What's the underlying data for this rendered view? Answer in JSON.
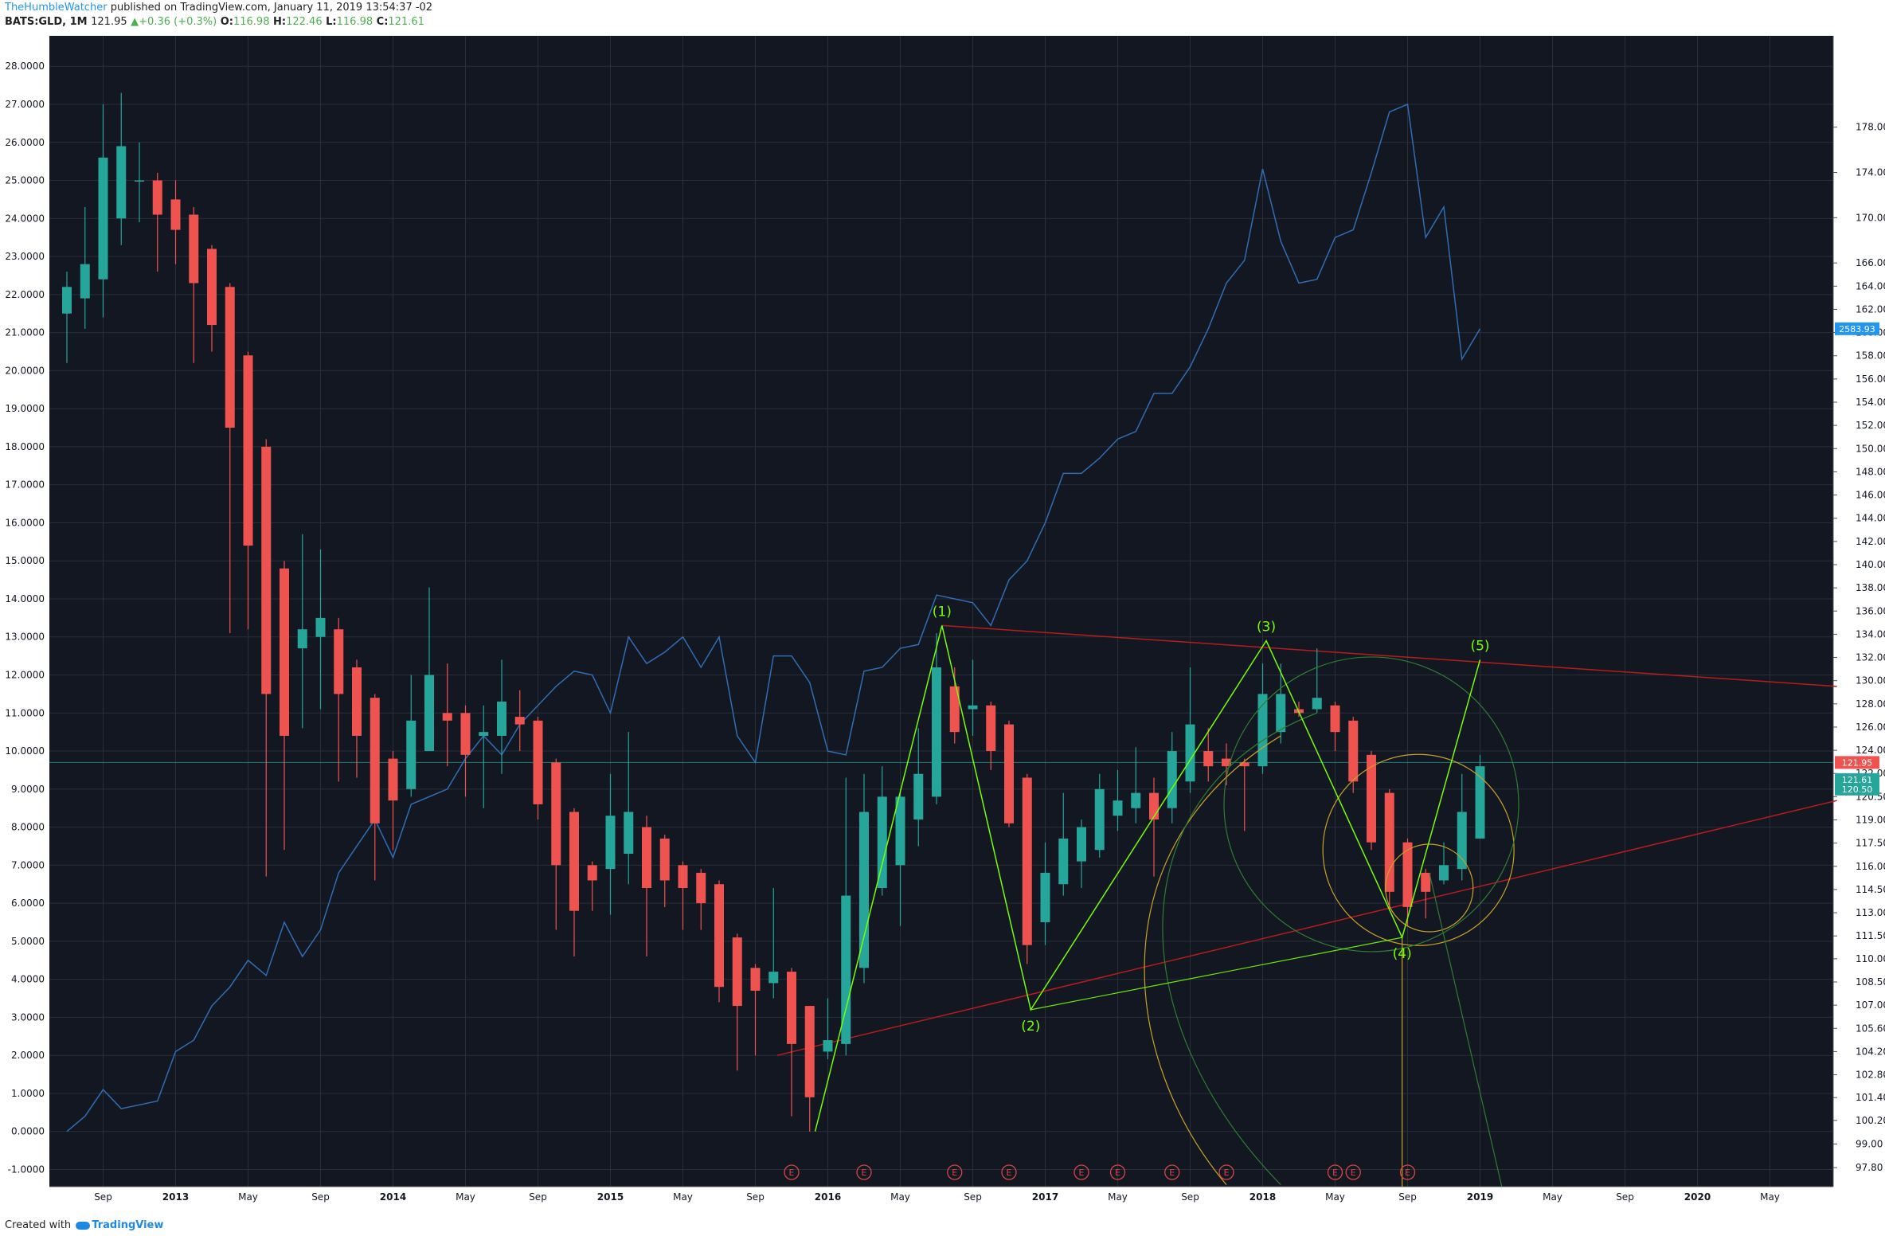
{
  "header": {
    "user": "TheHumbleWatcher",
    "published": "published on TradingView.com, January 11, 2019 13:54:37 -02",
    "symbol": "BATS:GLD, 1M",
    "last": "121.95",
    "change": "+0.36 (+0.3%)",
    "o_label": "O:",
    "o": "116.98",
    "h_label": "H:",
    "h": "122.46",
    "l_label": "L:",
    "l": "116.98",
    "c_label": "C:",
    "c": "121.61"
  },
  "footer": {
    "created": "Created with",
    "brand": "TradingView"
  },
  "colors": {
    "bg": "#131722",
    "up": "#26a69a",
    "down": "#ef5350",
    "grid": "#2a2e39",
    "axis_text": "#b2b5be",
    "wave": "#76ff03",
    "trend": "#b71c1c",
    "comparison": "#2962ff"
  },
  "chart_data": {
    "type": "candlestick",
    "timeframe": "1M",
    "left_axis": {
      "range": [
        -1.45,
        28.8
      ],
      "ticks": [
        "-1.0000",
        "0.0000",
        "1.0000",
        "2.0000",
        "3.0000",
        "4.0000",
        "5.0000",
        "6.0000",
        "7.0000",
        "8.0000",
        "9.0000",
        "10.0000",
        "11.0000",
        "12.0000",
        "13.0000",
        "14.0000",
        "15.0000",
        "16.0000",
        "17.0000",
        "18.0000",
        "19.0000",
        "20.0000",
        "21.0000",
        "22.0000",
        "23.0000",
        "24.0000",
        "25.0000",
        "26.0000",
        "27.0000",
        "28.0000"
      ]
    },
    "right_axis": {
      "ticks": [
        "97.80",
        "99.00",
        "100.20",
        "101.40",
        "102.80",
        "104.20",
        "105.60",
        "107.00",
        "108.50",
        "110.00",
        "111.50",
        "113.00",
        "114.50",
        "116.00",
        "117.50",
        "119.00",
        "120.50",
        "122.00",
        "124.00",
        "126.00",
        "128.00",
        "130.00",
        "132.00",
        "134.00",
        "136.00",
        "138.00",
        "140.00",
        "142.00",
        "144.00",
        "146.00",
        "148.00",
        "150.00",
        "152.00",
        "154.00",
        "156.00",
        "158.00",
        "160.00",
        "162.00",
        "164.00",
        "166.00",
        "170.00",
        "174.00",
        "178.00"
      ],
      "tick_values": [
        -0.95,
        -0.33,
        0.29,
        0.89,
        1.49,
        2.1,
        2.71,
        3.32,
        3.93,
        4.54,
        5.14,
        5.75,
        6.36,
        6.97,
        7.58,
        8.19,
        8.8,
        9.41,
        10.02,
        10.63,
        11.24,
        11.85,
        12.46,
        13.07,
        13.68,
        14.29,
        14.9,
        15.51,
        16.12,
        16.73,
        17.34,
        17.95,
        18.56,
        19.17,
        19.78,
        20.39,
        21.0,
        21.61,
        22.22,
        22.83,
        24.02,
        25.21,
        26.4
      ],
      "labels": [
        {
          "text": "2583.93",
          "value": 21.1,
          "color": "#2196f3"
        },
        {
          "text": "121.95",
          "value": 9.7,
          "color": "#ef5350"
        },
        {
          "text": "121.61",
          "value": 9.25,
          "color": "#26a69a"
        },
        {
          "text": "120.50",
          "value": 9.0,
          "color": "#26a69a"
        }
      ]
    },
    "x_axis": {
      "ticks": [
        {
          "label": "Sep",
          "i": 2
        },
        {
          "label": "2013",
          "i": 6
        },
        {
          "label": "May",
          "i": 10
        },
        {
          "label": "Sep",
          "i": 14
        },
        {
          "label": "2014",
          "i": 18
        },
        {
          "label": "May",
          "i": 22
        },
        {
          "label": "Sep",
          "i": 26
        },
        {
          "label": "2015",
          "i": 30
        },
        {
          "label": "May",
          "i": 34
        },
        {
          "label": "Sep",
          "i": 38
        },
        {
          "label": "2016",
          "i": 42
        },
        {
          "label": "May",
          "i": 46
        },
        {
          "label": "Sep",
          "i": 50
        },
        {
          "label": "2017",
          "i": 54
        },
        {
          "label": "May",
          "i": 58
        },
        {
          "label": "Sep",
          "i": 62
        },
        {
          "label": "2018",
          "i": 66
        },
        {
          "label": "May",
          "i": 70
        },
        {
          "label": "Sep",
          "i": 74
        },
        {
          "label": "2019",
          "i": 78
        },
        {
          "label": "May",
          "i": 82
        },
        {
          "label": "Sep",
          "i": 86
        },
        {
          "label": "2020",
          "i": 90
        },
        {
          "label": "May",
          "i": 94
        }
      ]
    },
    "candles": [
      {
        "o": 21.5,
        "h": 22.6,
        "l": 20.2,
        "c": 22.2
      },
      {
        "o": 21.9,
        "h": 24.3,
        "l": 21.1,
        "c": 22.8
      },
      {
        "o": 22.4,
        "h": 27.0,
        "l": 21.4,
        "c": 25.6
      },
      {
        "o": 24.0,
        "h": 27.3,
        "l": 23.3,
        "c": 25.9
      },
      {
        "o": 25.0,
        "h": 26.0,
        "l": 23.9,
        "c": 25.0
      },
      {
        "o": 25.0,
        "h": 25.2,
        "l": 22.6,
        "c": 24.1
      },
      {
        "o": 24.5,
        "h": 25.0,
        "l": 22.8,
        "c": 23.7
      },
      {
        "o": 24.1,
        "h": 24.3,
        "l": 20.2,
        "c": 22.3
      },
      {
        "o": 23.2,
        "h": 23.3,
        "l": 20.5,
        "c": 21.2
      },
      {
        "o": 22.2,
        "h": 22.3,
        "l": 13.1,
        "c": 18.5
      },
      {
        "o": 20.4,
        "h": 20.5,
        "l": 13.2,
        "c": 15.4
      },
      {
        "o": 18.0,
        "h": 18.2,
        "l": 6.7,
        "c": 11.5
      },
      {
        "o": 14.8,
        "h": 15.0,
        "l": 7.4,
        "c": 10.4
      },
      {
        "o": 12.7,
        "h": 15.7,
        "l": 10.6,
        "c": 13.2
      },
      {
        "o": 13.0,
        "h": 15.3,
        "l": 11.1,
        "c": 13.5
      },
      {
        "o": 13.2,
        "h": 13.5,
        "l": 9.2,
        "c": 11.5
      },
      {
        "o": 12.2,
        "h": 12.4,
        "l": 9.3,
        "c": 10.4
      },
      {
        "o": 11.4,
        "h": 11.5,
        "l": 6.6,
        "c": 8.1
      },
      {
        "o": 9.8,
        "h": 10.0,
        "l": 7.4,
        "c": 8.7
      },
      {
        "o": 9.0,
        "h": 12.0,
        "l": 8.8,
        "c": 10.8
      },
      {
        "o": 10.0,
        "h": 14.3,
        "l": 10.0,
        "c": 12.0
      },
      {
        "o": 11.0,
        "h": 12.3,
        "l": 9.6,
        "c": 10.8
      },
      {
        "o": 11.0,
        "h": 11.2,
        "l": 8.8,
        "c": 9.9
      },
      {
        "o": 10.4,
        "h": 11.2,
        "l": 8.5,
        "c": 10.5
      },
      {
        "o": 10.4,
        "h": 12.4,
        "l": 9.4,
        "c": 11.3
      },
      {
        "o": 10.9,
        "h": 11.6,
        "l": 10.0,
        "c": 10.7
      },
      {
        "o": 10.8,
        "h": 10.9,
        "l": 8.2,
        "c": 8.6
      },
      {
        "o": 9.7,
        "h": 9.8,
        "l": 5.3,
        "c": 7.0
      },
      {
        "o": 8.4,
        "h": 8.5,
        "l": 4.6,
        "c": 5.8
      },
      {
        "o": 7.0,
        "h": 7.1,
        "l": 5.8,
        "c": 6.6
      },
      {
        "o": 6.9,
        "h": 9.4,
        "l": 5.7,
        "c": 8.3
      },
      {
        "o": 7.3,
        "h": 10.5,
        "l": 6.5,
        "c": 8.4
      },
      {
        "o": 8.0,
        "h": 8.3,
        "l": 4.6,
        "c": 6.4
      },
      {
        "o": 7.7,
        "h": 7.8,
        "l": 5.9,
        "c": 6.6
      },
      {
        "o": 7.0,
        "h": 7.1,
        "l": 5.3,
        "c": 6.4
      },
      {
        "o": 6.8,
        "h": 6.9,
        "l": 5.3,
        "c": 6.0
      },
      {
        "o": 6.5,
        "h": 6.6,
        "l": 3.4,
        "c": 3.8
      },
      {
        "o": 5.1,
        "h": 5.2,
        "l": 1.6,
        "c": 3.3
      },
      {
        "o": 4.3,
        "h": 4.4,
        "l": 2.0,
        "c": 3.7
      },
      {
        "o": 3.9,
        "h": 6.4,
        "l": 3.5,
        "c": 4.2
      },
      {
        "o": 4.2,
        "h": 4.3,
        "l": 0.4,
        "c": 2.3
      },
      {
        "o": 3.3,
        "h": 3.3,
        "l": 0.0,
        "c": 0.9
      },
      {
        "o": 2.1,
        "h": 3.5,
        "l": 1.9,
        "c": 2.4
      },
      {
        "o": 2.3,
        "h": 9.3,
        "l": 2.0,
        "c": 6.2
      },
      {
        "o": 4.3,
        "h": 9.4,
        "l": 3.9,
        "c": 8.4
      },
      {
        "o": 6.4,
        "h": 9.6,
        "l": 6.2,
        "c": 8.8
      },
      {
        "o": 7.0,
        "h": 9.0,
        "l": 5.4,
        "c": 8.8
      },
      {
        "o": 8.2,
        "h": 10.6,
        "l": 7.5,
        "c": 9.4
      },
      {
        "o": 8.8,
        "h": 13.1,
        "l": 8.6,
        "c": 12.2
      },
      {
        "o": 11.7,
        "h": 12.2,
        "l": 10.2,
        "c": 10.5
      },
      {
        "o": 11.1,
        "h": 12.4,
        "l": 10.4,
        "c": 11.2
      },
      {
        "o": 11.2,
        "h": 11.3,
        "l": 9.5,
        "c": 10.0
      },
      {
        "o": 10.7,
        "h": 10.8,
        "l": 8.0,
        "c": 8.1
      },
      {
        "o": 9.3,
        "h": 9.4,
        "l": 4.4,
        "c": 4.9
      },
      {
        "o": 5.5,
        "h": 7.6,
        "l": 4.9,
        "c": 6.8
      },
      {
        "o": 6.5,
        "h": 8.9,
        "l": 6.2,
        "c": 7.7
      },
      {
        "o": 7.1,
        "h": 8.2,
        "l": 6.4,
        "c": 8.0
      },
      {
        "o": 7.4,
        "h": 9.4,
        "l": 7.2,
        "c": 9.0
      },
      {
        "o": 8.3,
        "h": 9.5,
        "l": 7.9,
        "c": 8.7
      },
      {
        "o": 8.5,
        "h": 10.1,
        "l": 8.1,
        "c": 8.9
      },
      {
        "o": 8.9,
        "h": 9.3,
        "l": 6.7,
        "c": 8.2
      },
      {
        "o": 8.5,
        "h": 10.5,
        "l": 8.1,
        "c": 10.0
      },
      {
        "o": 9.2,
        "h": 12.2,
        "l": 8.9,
        "c": 10.7
      },
      {
        "o": 10.0,
        "h": 10.6,
        "l": 9.2,
        "c": 9.6
      },
      {
        "o": 9.8,
        "h": 10.2,
        "l": 9.1,
        "c": 9.6
      },
      {
        "o": 9.7,
        "h": 9.8,
        "l": 7.9,
        "c": 9.6
      },
      {
        "o": 9.6,
        "h": 12.3,
        "l": 9.4,
        "c": 11.5
      },
      {
        "o": 10.5,
        "h": 12.3,
        "l": 10.2,
        "c": 11.5
      },
      {
        "o": 11.1,
        "h": 11.3,
        "l": 10.9,
        "c": 11.0
      },
      {
        "o": 11.1,
        "h": 12.7,
        "l": 11.0,
        "c": 11.4
      },
      {
        "o": 11.2,
        "h": 11.3,
        "l": 10.0,
        "c": 10.5
      },
      {
        "o": 10.8,
        "h": 10.9,
        "l": 8.9,
        "c": 9.2
      },
      {
        "o": 9.9,
        "h": 10.0,
        "l": 7.4,
        "c": 7.6
      },
      {
        "o": 8.9,
        "h": 9.0,
        "l": 5.8,
        "c": 6.3
      },
      {
        "o": 7.6,
        "h": 7.7,
        "l": 5.4,
        "c": 5.9
      },
      {
        "o": 6.8,
        "h": 6.9,
        "l": 5.6,
        "c": 6.3
      },
      {
        "o": 6.6,
        "h": 7.6,
        "l": 6.5,
        "c": 7.0
      },
      {
        "o": 6.9,
        "h": 9.4,
        "l": 6.6,
        "c": 8.4
      },
      {
        "o": 7.7,
        "h": 9.9,
        "l": 7.7,
        "c": 9.6
      }
    ],
    "comparison_series": {
      "label": "2583.93",
      "points": [
        [
          0,
          0.0
        ],
        [
          1,
          0.4
        ],
        [
          2,
          1.1
        ],
        [
          3,
          0.6
        ],
        [
          4,
          0.7
        ],
        [
          5,
          0.8
        ],
        [
          6,
          2.1
        ],
        [
          7,
          2.4
        ],
        [
          8,
          3.3
        ],
        [
          9,
          3.8
        ],
        [
          10,
          4.5
        ],
        [
          11,
          4.1
        ],
        [
          12,
          5.5
        ],
        [
          13,
          4.6
        ],
        [
          14,
          5.3
        ],
        [
          15,
          6.8
        ],
        [
          16,
          7.5
        ],
        [
          17,
          8.2
        ],
        [
          18,
          7.2
        ],
        [
          19,
          8.6
        ],
        [
          20,
          8.8
        ],
        [
          21,
          9.0
        ],
        [
          22,
          9.8
        ],
        [
          23,
          10.4
        ],
        [
          24,
          9.9
        ],
        [
          25,
          10.7
        ],
        [
          26,
          11.2
        ],
        [
          27,
          11.7
        ],
        [
          28,
          12.1
        ],
        [
          29,
          12.0
        ],
        [
          30,
          11.0
        ],
        [
          31,
          13.0
        ],
        [
          32,
          12.3
        ],
        [
          33,
          12.6
        ],
        [
          34,
          13.0
        ],
        [
          35,
          12.2
        ],
        [
          36,
          13.0
        ],
        [
          37,
          10.4
        ],
        [
          38,
          9.7
        ],
        [
          39,
          12.5
        ],
        [
          40,
          12.5
        ],
        [
          41,
          11.8
        ],
        [
          42,
          10.0
        ],
        [
          43,
          9.9
        ],
        [
          44,
          12.1
        ],
        [
          45,
          12.2
        ],
        [
          46,
          12.7
        ],
        [
          47,
          12.8
        ],
        [
          48,
          14.1
        ],
        [
          49,
          14.0
        ],
        [
          50,
          13.9
        ],
        [
          51,
          13.3
        ],
        [
          52,
          14.5
        ],
        [
          53,
          15.0
        ],
        [
          54,
          16.0
        ],
        [
          55,
          17.3
        ],
        [
          56,
          17.3
        ],
        [
          57,
          17.7
        ],
        [
          58,
          18.2
        ],
        [
          59,
          18.4
        ],
        [
          60,
          19.4
        ],
        [
          61,
          19.4
        ],
        [
          62,
          20.1
        ],
        [
          63,
          21.1
        ],
        [
          64,
          22.3
        ],
        [
          65,
          22.9
        ],
        [
          66,
          25.3
        ],
        [
          67,
          23.4
        ],
        [
          68,
          22.3
        ],
        [
          69,
          22.4
        ],
        [
          70,
          23.5
        ],
        [
          71,
          23.7
        ],
        [
          72,
          25.2
        ],
        [
          73,
          26.8
        ],
        [
          74,
          27.0
        ],
        [
          75,
          23.5
        ],
        [
          76,
          24.3
        ],
        [
          77,
          20.3
        ],
        [
          78,
          21.1
        ]
      ]
    },
    "wave_points": [
      {
        "label": "",
        "i": 41.3,
        "v": 0.0
      },
      {
        "label": "(1)",
        "i": 48.3,
        "v": 13.3
      },
      {
        "label": "(2)",
        "i": 53.2,
        "v": 3.2
      },
      {
        "label": "(3)",
        "i": 66.2,
        "v": 12.9
      },
      {
        "label": "(4)",
        "i": 73.7,
        "v": 5.1
      },
      {
        "label": "(5)",
        "i": 78.0,
        "v": 12.4
      }
    ],
    "trendlines": [
      {
        "from": [
          48.3,
          13.3
        ],
        "to": [
          97.7,
          11.7
        ]
      },
      {
        "from": [
          39.2,
          2.0
        ],
        "to": [
          97.7,
          8.7
        ]
      }
    ],
    "earnings": [
      40,
      44,
      49,
      52,
      56,
      58,
      61,
      64,
      70,
      71,
      74
    ],
    "earnings_label": "E"
  }
}
